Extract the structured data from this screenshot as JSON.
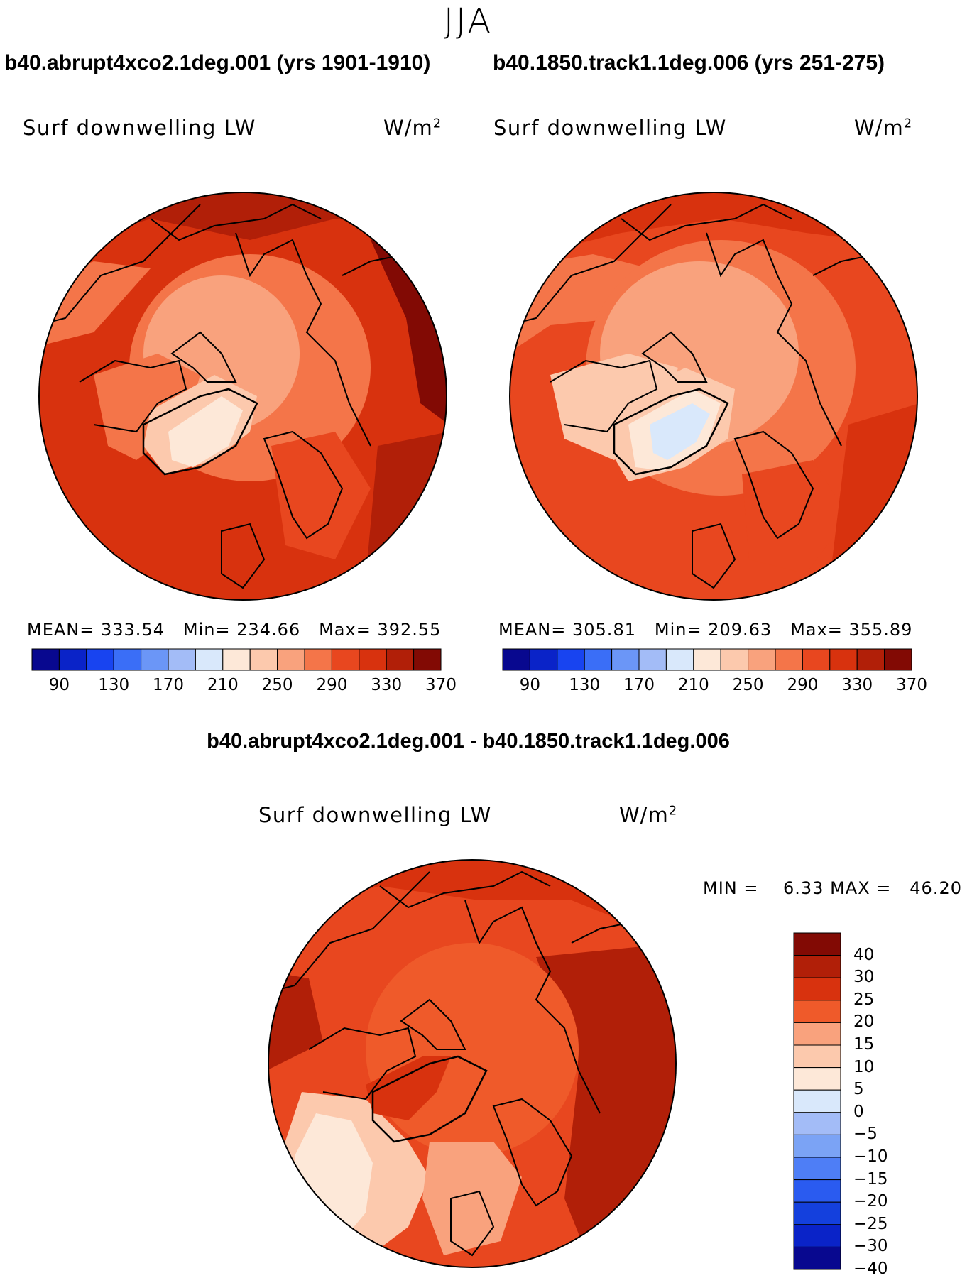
{
  "season": "JJA",
  "panels": [
    {
      "case": "b40.abrupt4xco2.1deg.001 (yrs 1901-1910)",
      "variable": "Surf downwelling LW",
      "units_base": "W/m",
      "units_exp": "2",
      "stats": {
        "mean_label": "MEAN=",
        "mean": "333.54",
        "min_label": "Min=",
        "min": "234.66",
        "max_label": "Max=",
        "max": "392.55"
      }
    },
    {
      "case": "b40.1850.track1.1deg.006 (yrs 251-275)",
      "variable": "Surf downwelling LW",
      "units_base": "W/m",
      "units_exp": "2",
      "stats": {
        "mean_label": "MEAN=",
        "mean": "305.81",
        "min_label": "Min=",
        "min": "209.63",
        "max_label": "Max=",
        "max": "355.89"
      }
    }
  ],
  "abs_colorbar": {
    "colors": [
      "#08088f",
      "#0a23c8",
      "#1844f0",
      "#3a6ef7",
      "#6b96f7",
      "#a3bcf7",
      "#d9e8fb",
      "#fde8d8",
      "#fcc9ad",
      "#f9a27d",
      "#f47549",
      "#e8471f",
      "#d8320e",
      "#b11f08",
      "#820a04"
    ],
    "labels": [
      "90",
      "130",
      "170",
      "210",
      "250",
      "290",
      "330",
      "370"
    ]
  },
  "difference": {
    "title": "b40.abrupt4xco2.1deg.001 - b40.1850.track1.1deg.006",
    "variable": "Surf downwelling LW",
    "units_base": "W/m",
    "units_exp": "2",
    "min_label": "MIN =",
    "min": "6.33",
    "max_label": "MAX =",
    "max": "46.20"
  },
  "diff_colorbar": {
    "colors": [
      "#820a04",
      "#b11f08",
      "#d8320e",
      "#ef5a2a",
      "#f9a27d",
      "#fcc9ad",
      "#fde8d8",
      "#d9e8fb",
      "#a3bcf7",
      "#7ba3f5",
      "#4e7ef6",
      "#2a5bf0",
      "#1440dd",
      "#0a23c8",
      "#08088f"
    ],
    "labels": [
      "40",
      "30",
      "25",
      "20",
      "15",
      "10",
      "5",
      "0",
      "−5",
      "−10",
      "−15",
      "−20",
      "−25",
      "−30",
      "−40"
    ]
  },
  "map_palette": {
    "ocean_low": "#f47549",
    "mid": "#e8471f",
    "high": "#d8320e",
    "very_high": "#b11f08",
    "ice_pale": "#fcc9ad",
    "ice_cream": "#fde8d8",
    "ice_blue": "#d9e8fb",
    "coast": "#000000"
  }
}
